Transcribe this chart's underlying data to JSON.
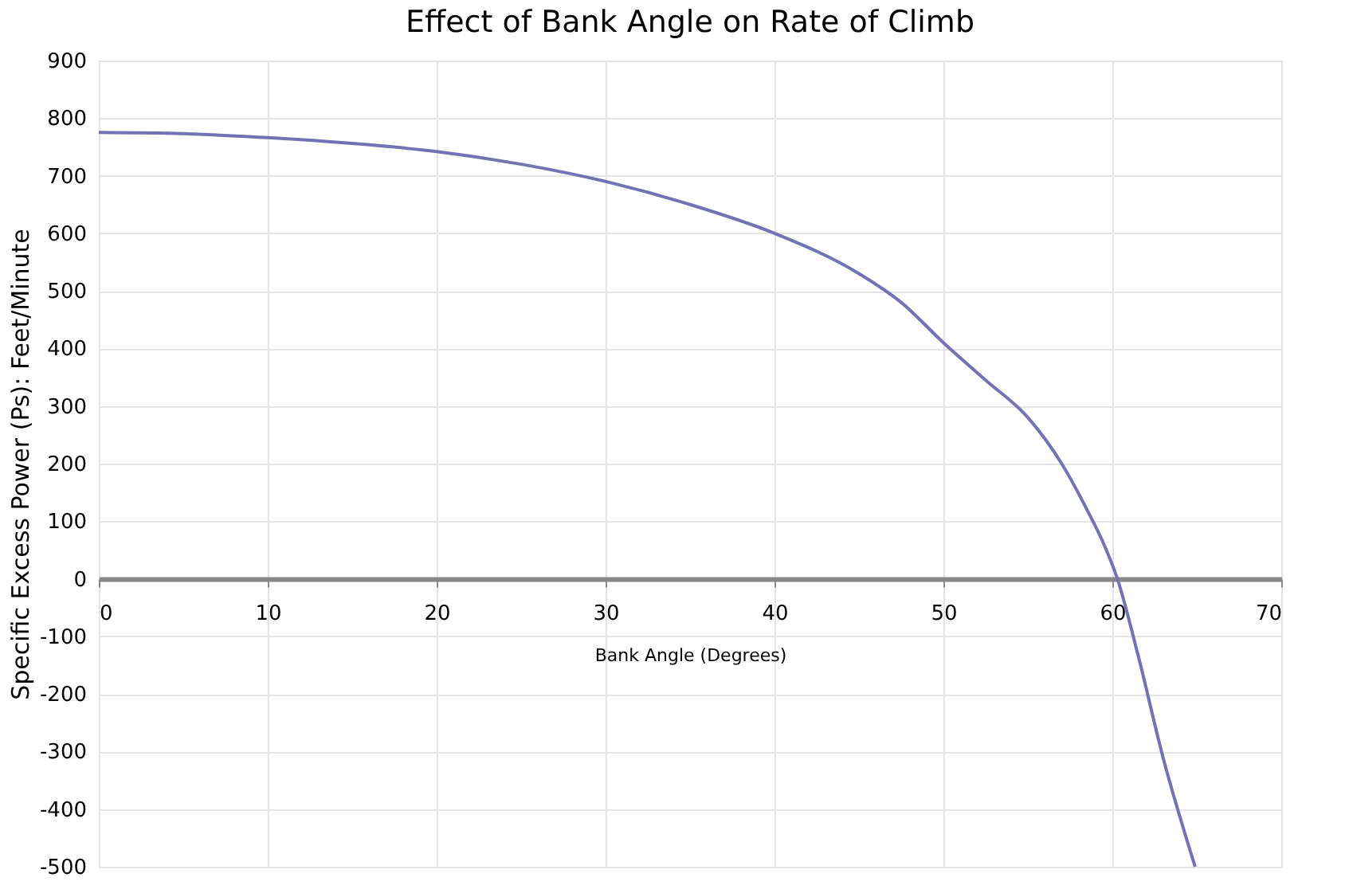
{
  "chart_data": {
    "type": "line",
    "title": "Effect of Bank Angle on Rate of Climb",
    "xlabel": "Bank Angle (Degrees)",
    "ylabel": "Specific Excess Power  (Ps): Feet/Minute",
    "series": [
      {
        "color": "#7272b4",
        "x": [
          0,
          5,
          10,
          15,
          20,
          25,
          30,
          35,
          40,
          45,
          47.5,
          50,
          52.5,
          55,
          57,
          58.5,
          59.5,
          60.3,
          61.5,
          63,
          64.9
        ],
        "values": [
          775,
          773,
          766,
          756,
          742,
          720,
          690,
          650,
          600,
          530,
          480,
          410,
          345,
          280,
          200,
          120,
          60,
          0,
          -130,
          -310,
          -500
        ]
      }
    ],
    "xlim": [
      0,
      70
    ],
    "ylim": [
      -500,
      900
    ],
    "xticks": [
      0,
      10,
      20,
      30,
      40,
      50,
      60,
      70
    ],
    "yticks": [
      -500,
      -400,
      -300,
      -200,
      -100,
      0,
      100,
      200,
      300,
      400,
      500,
      600,
      700,
      800,
      900
    ],
    "grid": true,
    "line_style": "solid",
    "marker": "none"
  }
}
